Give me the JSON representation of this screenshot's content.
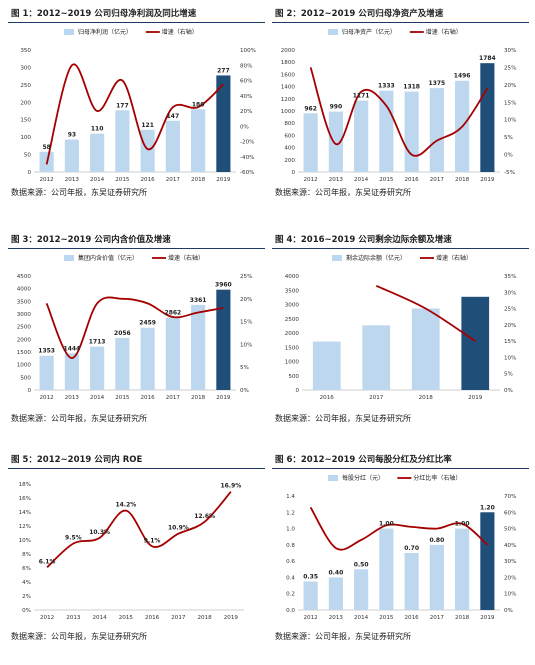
{
  "colors": {
    "bar_light": "#bdd7ee",
    "bar_dark": "#1f4e79",
    "line": "#a50000",
    "rule": "#1f3864"
  },
  "charts": [
    {
      "id": "c1",
      "title": "图 1：2012~2019 公司归母净利润及同比增速",
      "source": "数据来源：公司年报，东吴证券研究所",
      "chart_data": {
        "type": "bar",
        "categories": [
          "2012",
          "2013",
          "2014",
          "2015",
          "2016",
          "2017",
          "2018",
          "2019"
        ],
        "series": [
          {
            "name": "归母净利润（亿元）",
            "type": "bar",
            "axis": "left",
            "values": [
              58,
              93,
              110,
              177,
              121,
              147,
              180,
              277
            ]
          },
          {
            "name": "增速（右轴）",
            "type": "line",
            "axis": "right",
            "values": [
              -50,
              80,
              20,
              60,
              -30,
              25,
              25,
              55
            ]
          }
        ],
        "left_axis": {
          "min": 0,
          "max": 350,
          "step": 50,
          "ticks": [
            "0",
            "50",
            "100",
            "150",
            "200",
            "250",
            "300",
            "350"
          ]
        },
        "right_axis": {
          "min": -60,
          "max": 100,
          "step": 20,
          "ticks": [
            "-60%",
            "-40%",
            "-20%",
            "0%",
            "20%",
            "40%",
            "60%",
            "80%",
            "100%"
          ]
        },
        "data_labels": [
          "58",
          "93",
          "110",
          "177",
          "121",
          "147",
          "180",
          "277"
        ],
        "show_labels": true,
        "legend_position": "top"
      }
    },
    {
      "id": "c2",
      "title": "图 2：2012~2019 公司归母净资产及增速",
      "source": "数据来源：公司年报，东吴证券研究所",
      "chart_data": {
        "type": "bar",
        "categories": [
          "2012",
          "2013",
          "2014",
          "2015",
          "2016",
          "2017",
          "2018",
          "2019"
        ],
        "series": [
          {
            "name": "归母净资产（亿元）",
            "type": "bar",
            "axis": "left",
            "values": [
              962,
              990,
              1171,
              1333,
              1318,
              1375,
              1496,
              1784
            ]
          },
          {
            "name": "增速（右轴）",
            "type": "line",
            "axis": "right",
            "values": [
              25,
              3,
              18,
              14,
              0,
              4,
              8,
              19
            ]
          }
        ],
        "left_axis": {
          "min": 0,
          "max": 2000,
          "step": 200,
          "ticks": [
            "0",
            "200",
            "400",
            "600",
            "800",
            "1000",
            "1200",
            "1400",
            "1600",
            "1800",
            "2000"
          ]
        },
        "right_axis": {
          "min": -5,
          "max": 30,
          "step": 5,
          "ticks": [
            "-5%",
            "0%",
            "5%",
            "10%",
            "15%",
            "20%",
            "25%",
            "30%"
          ]
        },
        "data_labels": [
          "962",
          "990",
          "1171",
          "1333",
          "1318",
          "1375",
          "1496",
          "1784"
        ],
        "show_labels": true,
        "legend_position": "top"
      }
    },
    {
      "id": "c3",
      "title": "图 3：2012~2019 公司内含价值及增速",
      "source": "数据来源：公司年报，东吴证券研究所",
      "chart_data": {
        "type": "bar",
        "categories": [
          "2012",
          "2013",
          "2014",
          "2015",
          "2016",
          "2017",
          "2018",
          "2019"
        ],
        "series": [
          {
            "name": "集团内含价值（亿元）",
            "type": "bar",
            "axis": "left",
            "values": [
              1353,
              1444,
              1713,
              2056,
              2459,
              2862,
              3361,
              3960
            ]
          },
          {
            "name": "增速（右轴）",
            "type": "line",
            "axis": "right",
            "values": [
              19,
              7,
              19,
              20,
              19,
              16,
              17,
              18
            ]
          }
        ],
        "left_axis": {
          "min": 0,
          "max": 4500,
          "step": 500,
          "ticks": [
            "0",
            "500",
            "1000",
            "1500",
            "2000",
            "2500",
            "3000",
            "3500",
            "4000",
            "4500"
          ]
        },
        "right_axis": {
          "min": 0,
          "max": 25,
          "step": 5,
          "ticks": [
            "0%",
            "5%",
            "10%",
            "15%",
            "20%",
            "25%"
          ]
        },
        "data_labels": [
          "1353",
          "1444",
          "1713",
          "2056",
          "2459",
          "2862",
          "3361",
          "3960"
        ],
        "show_labels": true,
        "legend_position": "top"
      }
    },
    {
      "id": "c4",
      "title": "图 4：2016~2019 公司剩余边际余额及增速",
      "source": "数据来源：公司年报，东吴证券研究所",
      "chart_data": {
        "type": "bar",
        "categories": [
          "2016",
          "2017",
          "2018",
          "2019"
        ],
        "series": [
          {
            "name": "剩余边际余额（亿元）",
            "type": "bar",
            "axis": "left",
            "values": [
              1700,
              2270,
              2860,
              3270
            ]
          },
          {
            "name": "增速（右轴）",
            "type": "line",
            "axis": "right",
            "values": [
              null,
              32,
              25,
              15
            ]
          }
        ],
        "left_axis": {
          "min": 0,
          "max": 4000,
          "step": 500,
          "ticks": [
            "0",
            "500",
            "1000",
            "1500",
            "2000",
            "2500",
            "3000",
            "3500",
            "4000"
          ]
        },
        "right_axis": {
          "min": 0,
          "max": 35,
          "step": 5,
          "ticks": [
            "0%",
            "5%",
            "10%",
            "15%",
            "20%",
            "25%",
            "30%",
            "35%"
          ]
        },
        "data_labels": [
          "",
          "",
          "",
          ""
        ],
        "show_labels": false,
        "legend_position": "top"
      }
    },
    {
      "id": "c5",
      "title": "图 5：2012~2019 公司内 ROE",
      "source": "数据来源：公司年报，东吴证券研究所",
      "chart_data": {
        "type": "line",
        "categories": [
          "2012",
          "2013",
          "2014",
          "2015",
          "2016",
          "2017",
          "2018",
          "2019"
        ],
        "series": [
          {
            "name": "ROE",
            "type": "line",
            "axis": "left",
            "values": [
              6.1,
              9.5,
              10.3,
              14.2,
              9.1,
              10.9,
              12.6,
              16.9
            ]
          }
        ],
        "left_axis": {
          "min": 0,
          "max": 18,
          "step": 2,
          "ticks": [
            "0%",
            "2%",
            "4%",
            "6%",
            "8%",
            "10%",
            "12%",
            "14%",
            "16%",
            "18%"
          ]
        },
        "data_labels": [
          "6.1%",
          "9.5%",
          "10.3%",
          "14.2%",
          "9.1%",
          "10.9%",
          "12.6%",
          "16.9%"
        ],
        "show_labels": true,
        "legend_position": "none"
      }
    },
    {
      "id": "c6",
      "title": "图 6：2012~2019 公司每股分红及分红比率",
      "source": "数据来源：公司年报，东吴证券研究所",
      "chart_data": {
        "type": "bar",
        "categories": [
          "2012",
          "2013",
          "2014",
          "2015",
          "2016",
          "2017",
          "2018",
          "2019"
        ],
        "series": [
          {
            "name": "每股分红（元）",
            "type": "bar",
            "axis": "left",
            "values": [
              0.35,
              0.4,
              0.5,
              1.0,
              0.7,
              0.8,
              1.0,
              1.2
            ]
          },
          {
            "name": "分红比率（右轴）",
            "type": "line",
            "axis": "right",
            "values": [
              63,
              38,
              43,
              52,
              51,
              50,
              53,
              40
            ]
          }
        ],
        "left_axis": {
          "min": 0,
          "max": 1.4,
          "step": 0.2,
          "ticks": [
            "0.0",
            "0.2",
            "0.4",
            "0.6",
            "0.8",
            "1.0",
            "1.2",
            "1.4"
          ]
        },
        "right_axis": {
          "min": 0,
          "max": 70,
          "step": 10,
          "ticks": [
            "0%",
            "10%",
            "20%",
            "30%",
            "40%",
            "50%",
            "60%",
            "70%"
          ]
        },
        "data_labels": [
          "0.35",
          "0.40",
          "0.50",
          "1.00",
          "0.70",
          "0.80",
          "1.00",
          "1.20"
        ],
        "show_labels": true,
        "legend_position": "top"
      }
    }
  ]
}
